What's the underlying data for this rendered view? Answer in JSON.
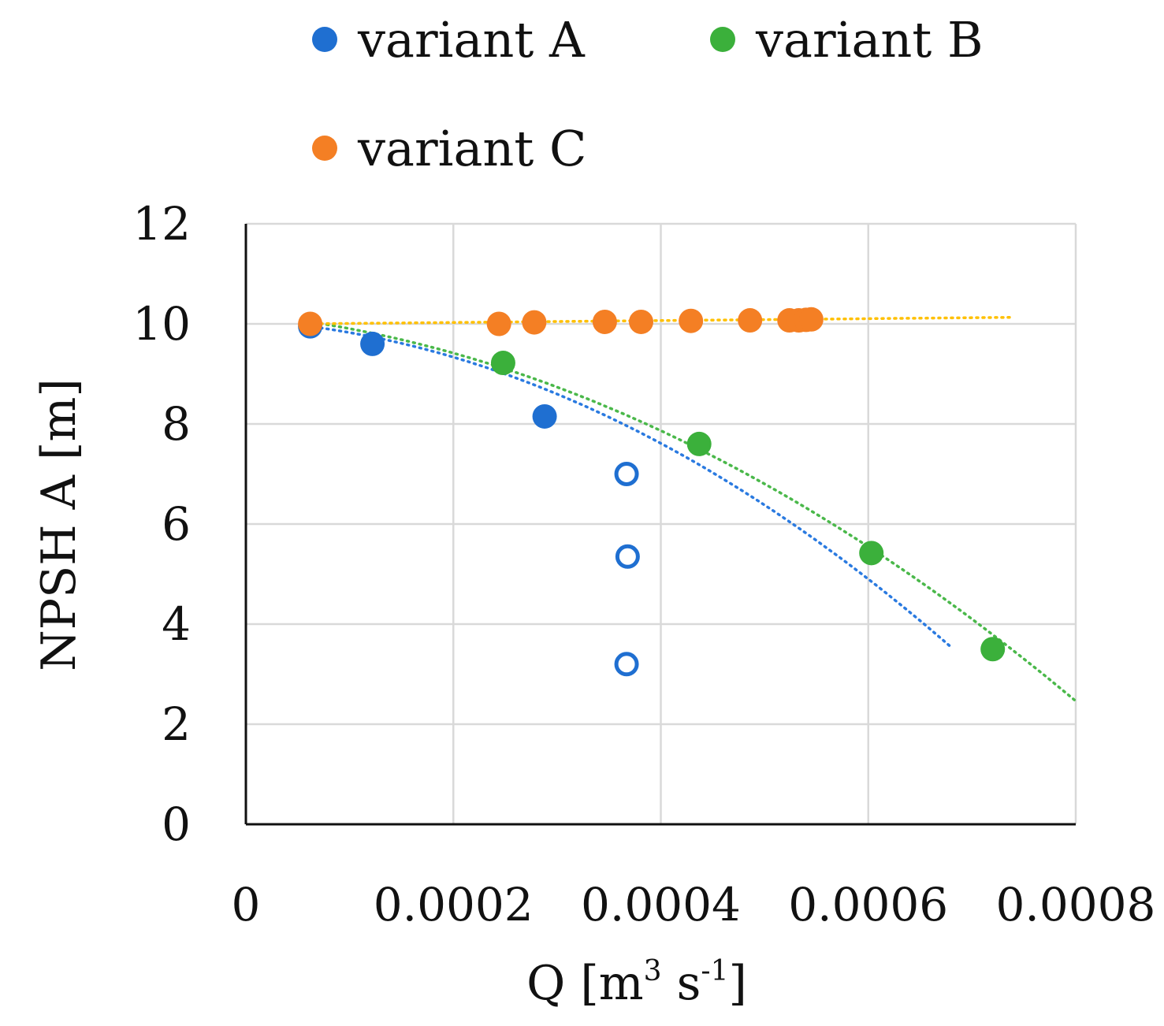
{
  "chart_data": {
    "type": "scatter",
    "title": "",
    "xlabel": {
      "main": "Q [m",
      "sup1": "3",
      "mid": " s",
      "sup2": "-1",
      "end": "]"
    },
    "ylabel": "NPSH A  [m]",
    "xlim": [
      0,
      0.0008
    ],
    "ylim": [
      0,
      12
    ],
    "x_ticks": [
      0,
      0.0002,
      0.0004,
      0.0006,
      0.0008
    ],
    "x_tick_labels": [
      "0",
      "0.0002",
      "0.0004",
      "0.0006",
      "0.0008"
    ],
    "y_ticks": [
      0,
      2,
      4,
      6,
      8,
      10,
      12
    ],
    "y_tick_labels": [
      "0",
      "2",
      "4",
      "6",
      "8",
      "10",
      "12"
    ],
    "grid": true,
    "legend_position": "top",
    "series": [
      {
        "name": "variant A",
        "color": "#1f6fd1",
        "points": [
          [
            6.2e-05,
            9.95
          ],
          [
            0.000122,
            9.6
          ],
          [
            0.000288,
            8.15
          ]
        ],
        "hollow_points": [
          [
            0.000367,
            7.0
          ],
          [
            0.000368,
            5.35
          ],
          [
            0.000367,
            3.2
          ]
        ],
        "trend": {
          "x": [
            6e-05,
            0.00068
          ],
          "coef": [
            -12360000,
            -1200,
            10.07
          ],
          "color": "#2a7ae0"
        }
      },
      {
        "name": "variant B",
        "color": "#3bb03b",
        "points": [
          [
            0.000248,
            9.22
          ],
          [
            0.000437,
            7.6
          ],
          [
            0.000603,
            5.42
          ],
          [
            0.00072,
            3.5
          ]
        ],
        "trend": {
          "x": [
            6e-05,
            0.0008
          ],
          "coef": [
            -9590000,
            -2000,
            10.2
          ],
          "color": "#4ab84a"
        }
      },
      {
        "name": "variant C",
        "color": "#f47f24",
        "points": [
          [
            6.2e-05,
            10.0
          ],
          [
            0.000244,
            10.0
          ],
          [
            0.000278,
            10.03
          ],
          [
            0.000346,
            10.04
          ],
          [
            0.000381,
            10.04
          ],
          [
            0.000429,
            10.06
          ],
          [
            0.000486,
            10.07
          ],
          [
            0.000524,
            10.07
          ],
          [
            0.000533,
            10.07
          ],
          [
            0.00054,
            10.08
          ],
          [
            0.000545,
            10.09
          ]
        ],
        "trend": {
          "x": [
            6e-05,
            0.00074
          ],
          "coef": [
            0,
            190,
            9.99
          ],
          "color": "#ffc000"
        }
      }
    ]
  }
}
